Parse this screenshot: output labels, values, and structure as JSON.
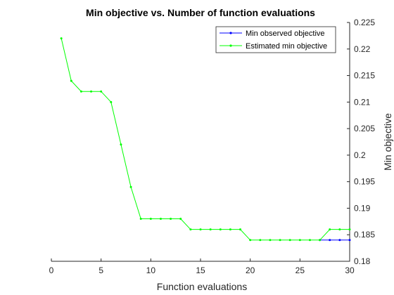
{
  "chart_data": {
    "type": "line",
    "title": "Min objective vs. Number of function evaluations",
    "xlabel": "Function evaluations",
    "ylabel": "Min objective",
    "xlim": [
      0,
      30
    ],
    "ylim": [
      0.18,
      0.225
    ],
    "xticks": [
      0,
      5,
      10,
      15,
      20,
      25,
      30
    ],
    "yticks": [
      0.18,
      0.185,
      0.19,
      0.195,
      0.2,
      0.205,
      0.21,
      0.215,
      0.22,
      0.225
    ],
    "x_tick_labels": [
      "0",
      "5",
      "10",
      "15",
      "20",
      "25",
      "30"
    ],
    "y_tick_labels": [
      "0.18",
      "0.185",
      "0.19",
      "0.195",
      "0.2",
      "0.205",
      "0.21",
      "0.215",
      "0.22",
      "0.225"
    ],
    "y_axis_side": "right",
    "grid": false,
    "legend_position": "top-right",
    "x": [
      1,
      2,
      3,
      4,
      5,
      6,
      7,
      8,
      9,
      10,
      11,
      12,
      13,
      14,
      15,
      16,
      17,
      18,
      19,
      20,
      21,
      22,
      23,
      24,
      25,
      26,
      27,
      28,
      29,
      30
    ],
    "series": [
      {
        "name": "Min observed objective",
        "color": "#0000ff",
        "values": [
          0.184,
          0.184,
          0.184,
          0.184,
          0.184,
          0.184,
          0.184,
          0.184,
          0.184,
          0.184,
          0.184,
          0.184,
          0.184,
          0.184,
          0.184,
          0.184,
          0.184,
          0.184,
          0.184,
          0.184,
          0.184,
          0.184,
          0.184,
          0.184,
          0.184,
          0.184,
          0.184,
          0.184,
          0.184,
          0.184
        ],
        "visible_from_x": 27
      },
      {
        "name": "Estimated min objective",
        "color": "#00ff00",
        "values": [
          0.222,
          0.214,
          0.212,
          0.212,
          0.212,
          0.21,
          0.202,
          0.194,
          0.188,
          0.188,
          0.188,
          0.188,
          0.188,
          0.186,
          0.186,
          0.186,
          0.186,
          0.186,
          0.186,
          0.184,
          0.184,
          0.184,
          0.184,
          0.184,
          0.184,
          0.184,
          0.184,
          0.186,
          0.186,
          0.186
        ]
      }
    ]
  }
}
